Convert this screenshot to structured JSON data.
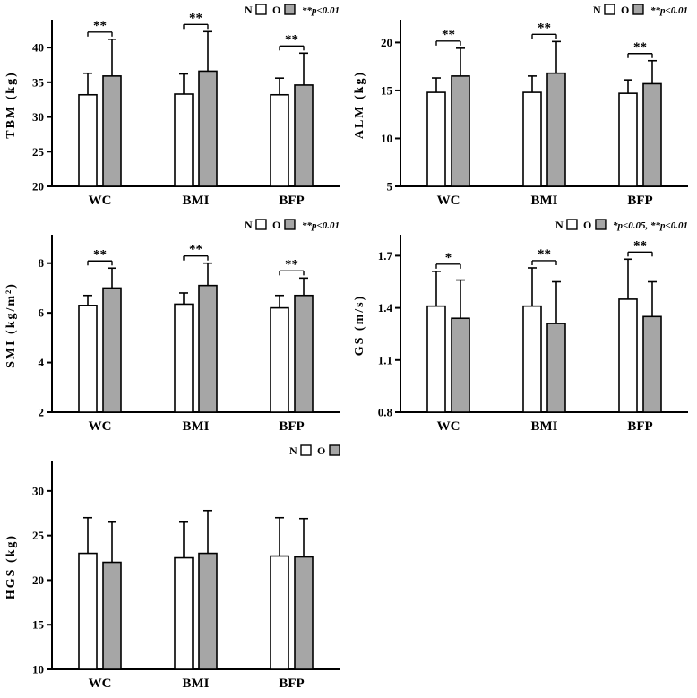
{
  "figure": {
    "background": "#ffffff",
    "group_labels": {
      "normal": "N",
      "obese": "O"
    },
    "bar_colors": {
      "N": "#ffffff",
      "O": "#a6a6a6"
    }
  },
  "chart_data": [
    {
      "id": "tbm",
      "type": "bar",
      "ylabel": "TBM (kg)",
      "ylim": [
        20,
        43.5
      ],
      "yticks": [
        20,
        25,
        30,
        35,
        40
      ],
      "ytick_decimals": 0,
      "categories": [
        "WC",
        "BMI",
        "BFP"
      ],
      "series": [
        {
          "name": "N",
          "fill": "#ffffff",
          "values": [
            33.2,
            33.3,
            33.2
          ],
          "errors": [
            3.1,
            2.9,
            2.4
          ]
        },
        {
          "name": "O",
          "fill": "#a6a6a6",
          "values": [
            35.9,
            36.6,
            34.6
          ],
          "errors": [
            5.3,
            5.7,
            4.6
          ]
        }
      ],
      "significance": [
        "**",
        "**",
        "**"
      ],
      "legend": {
        "n_label": "N",
        "o_label": "O",
        "note": "**p<0.01"
      }
    },
    {
      "id": "alm",
      "type": "bar",
      "ylabel": "ALM (kg)",
      "ylim": [
        5,
        22
      ],
      "yticks": [
        5,
        10,
        15,
        20
      ],
      "ytick_decimals": 0,
      "categories": [
        "WC",
        "BMI",
        "BFP"
      ],
      "series": [
        {
          "name": "N",
          "fill": "#ffffff",
          "values": [
            14.8,
            14.8,
            14.7
          ],
          "errors": [
            1.5,
            1.7,
            1.4
          ]
        },
        {
          "name": "O",
          "fill": "#a6a6a6",
          "values": [
            16.5,
            16.8,
            15.7
          ],
          "errors": [
            2.9,
            3.3,
            2.4
          ]
        }
      ],
      "significance": [
        "**",
        "**",
        "**"
      ],
      "legend": {
        "n_label": "N",
        "o_label": "O",
        "note": "**p<0.01"
      }
    },
    {
      "id": "smi",
      "type": "bar",
      "ylabel": "SMI (kg/m²)",
      "ylim": [
        2,
        9
      ],
      "yticks": [
        2,
        4,
        6,
        8
      ],
      "ytick_decimals": 0,
      "categories": [
        "WC",
        "BMI",
        "BFP"
      ],
      "series": [
        {
          "name": "N",
          "fill": "#ffffff",
          "values": [
            6.3,
            6.35,
            6.2
          ],
          "errors": [
            0.4,
            0.45,
            0.5
          ]
        },
        {
          "name": "O",
          "fill": "#a6a6a6",
          "values": [
            7.0,
            7.1,
            6.7
          ],
          "errors": [
            0.8,
            0.9,
            0.7
          ]
        }
      ],
      "significance": [
        "**",
        "**",
        "**"
      ],
      "legend": {
        "n_label": "N",
        "o_label": "O",
        "note": "**p<0.01"
      }
    },
    {
      "id": "gs",
      "type": "bar",
      "ylabel": "GS (m/s)",
      "ylim": [
        0.8,
        1.8
      ],
      "yticks": [
        0.8,
        1.1,
        1.4,
        1.7
      ],
      "ytick_decimals": 1,
      "categories": [
        "WC",
        "BMI",
        "BFP"
      ],
      "series": [
        {
          "name": "N",
          "fill": "#ffffff",
          "values": [
            1.41,
            1.41,
            1.45
          ],
          "errors": [
            0.2,
            0.22,
            0.23
          ]
        },
        {
          "name": "O",
          "fill": "#a6a6a6",
          "values": [
            1.34,
            1.31,
            1.35
          ],
          "errors": [
            0.22,
            0.24,
            0.2
          ]
        }
      ],
      "significance": [
        "*",
        "**",
        "**"
      ],
      "legend": {
        "n_label": "N",
        "o_label": "O",
        "note": "*p<0.05, **p<0.01"
      }
    },
    {
      "id": "hgs",
      "type": "bar",
      "ylabel": "HGS (kg)",
      "ylim": [
        10,
        33
      ],
      "yticks": [
        10,
        15,
        20,
        25,
        30
      ],
      "ytick_decimals": 0,
      "categories": [
        "WC",
        "BMI",
        "BFP"
      ],
      "series": [
        {
          "name": "N",
          "fill": "#ffffff",
          "values": [
            23.0,
            22.5,
            22.7
          ],
          "errors": [
            4.0,
            4.0,
            4.3
          ]
        },
        {
          "name": "O",
          "fill": "#a6a6a6",
          "values": [
            22.0,
            23.0,
            22.6
          ],
          "errors": [
            4.5,
            4.8,
            4.3
          ]
        }
      ],
      "significance": null,
      "legend": {
        "n_label": "N",
        "o_label": "O",
        "note": ""
      }
    }
  ]
}
